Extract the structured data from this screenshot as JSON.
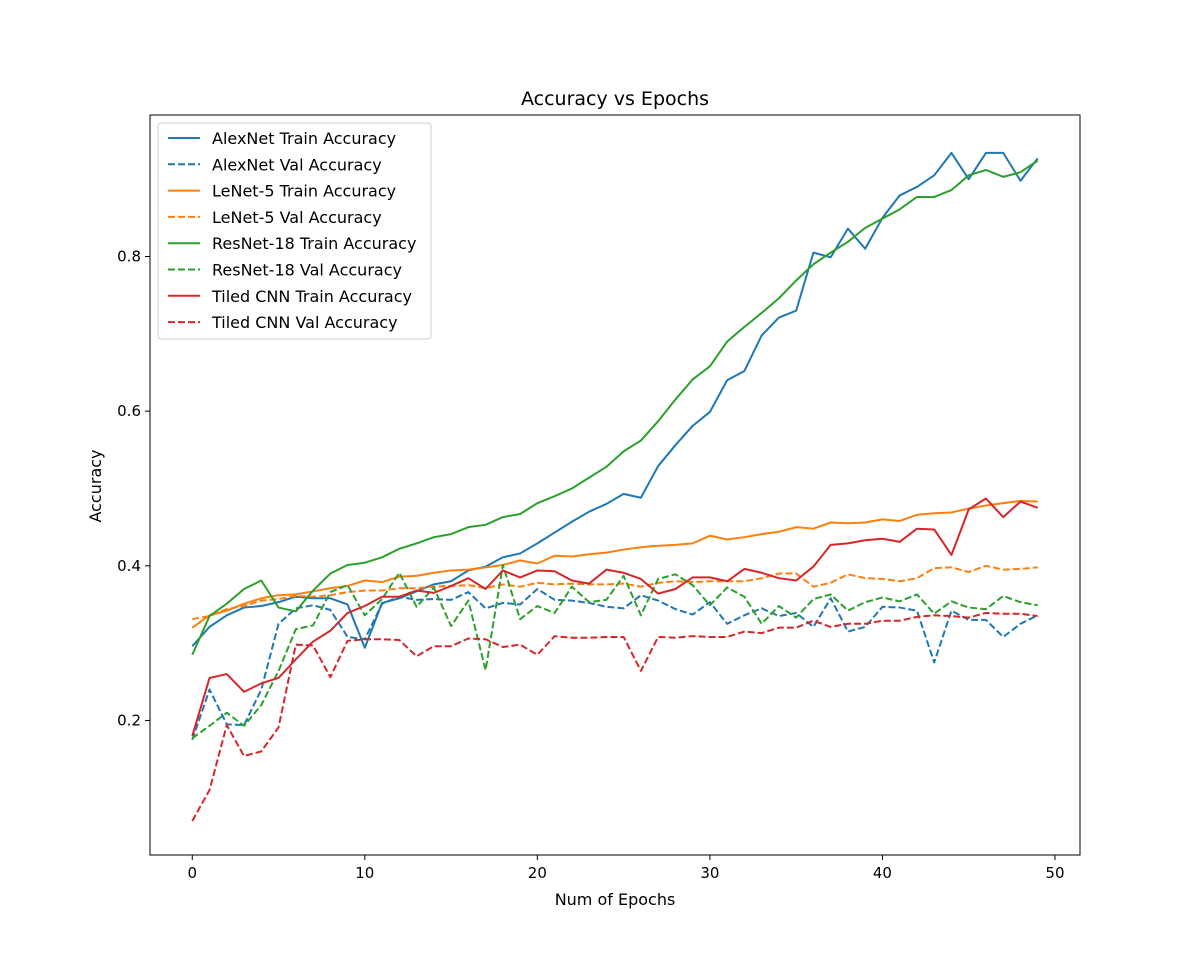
{
  "chart_data": {
    "type": "line",
    "title": "Accuracy vs Epochs",
    "xlabel": "Num of Epochs",
    "ylabel": "Accuracy",
    "xlim": [
      -2.45,
      51.45
    ],
    "ylim": [
      0.026,
      0.983
    ],
    "xticks": [
      0,
      10,
      20,
      30,
      40,
      50
    ],
    "yticks": [
      0.2,
      0.4,
      0.6,
      0.8
    ],
    "ytick_labels": [
      "0.2",
      "0.4",
      "0.6",
      "0.8"
    ],
    "grid": false,
    "legend_position": "top-left",
    "x": [
      0,
      1,
      2,
      3,
      4,
      5,
      6,
      7,
      8,
      9,
      10,
      11,
      12,
      13,
      14,
      15,
      16,
      17,
      18,
      19,
      20,
      21,
      22,
      23,
      24,
      25,
      26,
      27,
      28,
      29,
      30,
      31,
      32,
      33,
      34,
      35,
      36,
      37,
      38,
      39,
      40,
      41,
      42,
      43,
      44,
      45,
      46,
      47,
      48,
      49
    ],
    "series": [
      {
        "name": "AlexNet Train Accuracy",
        "color": "#1f77b4",
        "dash": "solid",
        "values": [
          0.296,
          0.321,
          0.336,
          0.346,
          0.348,
          0.353,
          0.36,
          0.358,
          0.358,
          0.35,
          0.294,
          0.352,
          0.358,
          0.367,
          0.376,
          0.38,
          0.394,
          0.399,
          0.411,
          0.416,
          0.429,
          0.443,
          0.457,
          0.47,
          0.48,
          0.493,
          0.488,
          0.529,
          0.556,
          0.581,
          0.599,
          0.64,
          0.652,
          0.698,
          0.721,
          0.73,
          0.805,
          0.799,
          0.836,
          0.81,
          0.85,
          0.879,
          0.89,
          0.905,
          0.934,
          0.9,
          0.934,
          0.934,
          0.898,
          0.927
        ]
      },
      {
        "name": "AlexNet Val Accuracy",
        "color": "#1f77b4",
        "dash": "dashed",
        "values": [
          0.175,
          0.24,
          0.195,
          0.194,
          0.24,
          0.325,
          0.345,
          0.349,
          0.343,
          0.308,
          0.305,
          0.351,
          0.36,
          0.356,
          0.357,
          0.356,
          0.366,
          0.345,
          0.352,
          0.35,
          0.37,
          0.356,
          0.355,
          0.352,
          0.347,
          0.345,
          0.362,
          0.355,
          0.344,
          0.337,
          0.353,
          0.325,
          0.336,
          0.345,
          0.335,
          0.339,
          0.321,
          0.358,
          0.315,
          0.321,
          0.347,
          0.346,
          0.342,
          0.275,
          0.342,
          0.33,
          0.33,
          0.308,
          0.325,
          0.336
        ]
      },
      {
        "name": "LeNet-5 Train Accuracy",
        "color": "#ff7f0e",
        "dash": "solid",
        "values": [
          0.32,
          0.336,
          0.342,
          0.351,
          0.358,
          0.362,
          0.363,
          0.367,
          0.371,
          0.374,
          0.381,
          0.379,
          0.386,
          0.387,
          0.391,
          0.394,
          0.395,
          0.398,
          0.401,
          0.407,
          0.403,
          0.413,
          0.412,
          0.415,
          0.417,
          0.421,
          0.424,
          0.426,
          0.427,
          0.429,
          0.439,
          0.434,
          0.437,
          0.441,
          0.444,
          0.45,
          0.448,
          0.456,
          0.455,
          0.456,
          0.46,
          0.458,
          0.466,
          0.468,
          0.469,
          0.474,
          0.478,
          0.481,
          0.484,
          0.483
        ]
      },
      {
        "name": "LeNet-5 Val Accuracy",
        "color": "#ff7f0e",
        "dash": "dashed",
        "values": [
          0.331,
          0.335,
          0.344,
          0.348,
          0.355,
          0.357,
          0.361,
          0.36,
          0.362,
          0.366,
          0.368,
          0.368,
          0.371,
          0.371,
          0.373,
          0.374,
          0.375,
          0.371,
          0.376,
          0.373,
          0.378,
          0.376,
          0.377,
          0.376,
          0.376,
          0.377,
          0.373,
          0.378,
          0.38,
          0.379,
          0.38,
          0.38,
          0.38,
          0.384,
          0.39,
          0.39,
          0.373,
          0.378,
          0.389,
          0.384,
          0.383,
          0.38,
          0.384,
          0.397,
          0.398,
          0.392,
          0.4,
          0.395,
          0.396,
          0.398
        ]
      },
      {
        "name": "ResNet-18 Train Accuracy",
        "color": "#2ca02c",
        "dash": "solid",
        "values": [
          0.285,
          0.335,
          0.351,
          0.37,
          0.381,
          0.346,
          0.341,
          0.368,
          0.39,
          0.401,
          0.404,
          0.411,
          0.422,
          0.429,
          0.437,
          0.441,
          0.45,
          0.453,
          0.463,
          0.467,
          0.481,
          0.49,
          0.5,
          0.514,
          0.528,
          0.548,
          0.562,
          0.587,
          0.615,
          0.641,
          0.658,
          0.69,
          0.709,
          0.727,
          0.746,
          0.769,
          0.79,
          0.805,
          0.819,
          0.837,
          0.849,
          0.861,
          0.877,
          0.877,
          0.886,
          0.905,
          0.912,
          0.903,
          0.909,
          0.924
        ]
      },
      {
        "name": "ResNet-18 Val Accuracy",
        "color": "#2ca02c",
        "dash": "dashed",
        "values": [
          0.177,
          0.193,
          0.21,
          0.193,
          0.22,
          0.264,
          0.318,
          0.323,
          0.366,
          0.375,
          0.336,
          0.357,
          0.391,
          0.347,
          0.372,
          0.322,
          0.355,
          0.265,
          0.401,
          0.331,
          0.348,
          0.339,
          0.373,
          0.353,
          0.356,
          0.387,
          0.336,
          0.383,
          0.389,
          0.375,
          0.349,
          0.372,
          0.36,
          0.325,
          0.348,
          0.333,
          0.357,
          0.363,
          0.342,
          0.353,
          0.359,
          0.354,
          0.363,
          0.338,
          0.354,
          0.346,
          0.344,
          0.361,
          0.353,
          0.349
        ]
      },
      {
        "name": "Tiled CNN Train Accuracy",
        "color": "#d62728",
        "dash": "solid",
        "values": [
          0.18,
          0.255,
          0.26,
          0.237,
          0.248,
          0.255,
          0.279,
          0.302,
          0.316,
          0.339,
          0.348,
          0.36,
          0.36,
          0.368,
          0.365,
          0.374,
          0.384,
          0.37,
          0.394,
          0.385,
          0.394,
          0.393,
          0.381,
          0.377,
          0.395,
          0.391,
          0.383,
          0.364,
          0.37,
          0.385,
          0.385,
          0.38,
          0.396,
          0.391,
          0.384,
          0.381,
          0.399,
          0.427,
          0.429,
          0.433,
          0.435,
          0.431,
          0.448,
          0.447,
          0.414,
          0.473,
          0.487,
          0.463,
          0.483,
          0.475
        ]
      },
      {
        "name": "Tiled CNN Val Accuracy",
        "color": "#d62728",
        "dash": "dashed",
        "values": [
          0.07,
          0.11,
          0.194,
          0.154,
          0.16,
          0.191,
          0.298,
          0.297,
          0.256,
          0.303,
          0.305,
          0.305,
          0.304,
          0.283,
          0.296,
          0.296,
          0.306,
          0.305,
          0.295,
          0.298,
          0.285,
          0.309,
          0.307,
          0.307,
          0.308,
          0.308,
          0.264,
          0.308,
          0.307,
          0.309,
          0.308,
          0.308,
          0.315,
          0.313,
          0.32,
          0.32,
          0.329,
          0.321,
          0.325,
          0.325,
          0.329,
          0.329,
          0.334,
          0.336,
          0.335,
          0.333,
          0.339,
          0.338,
          0.338,
          0.335
        ]
      }
    ]
  }
}
